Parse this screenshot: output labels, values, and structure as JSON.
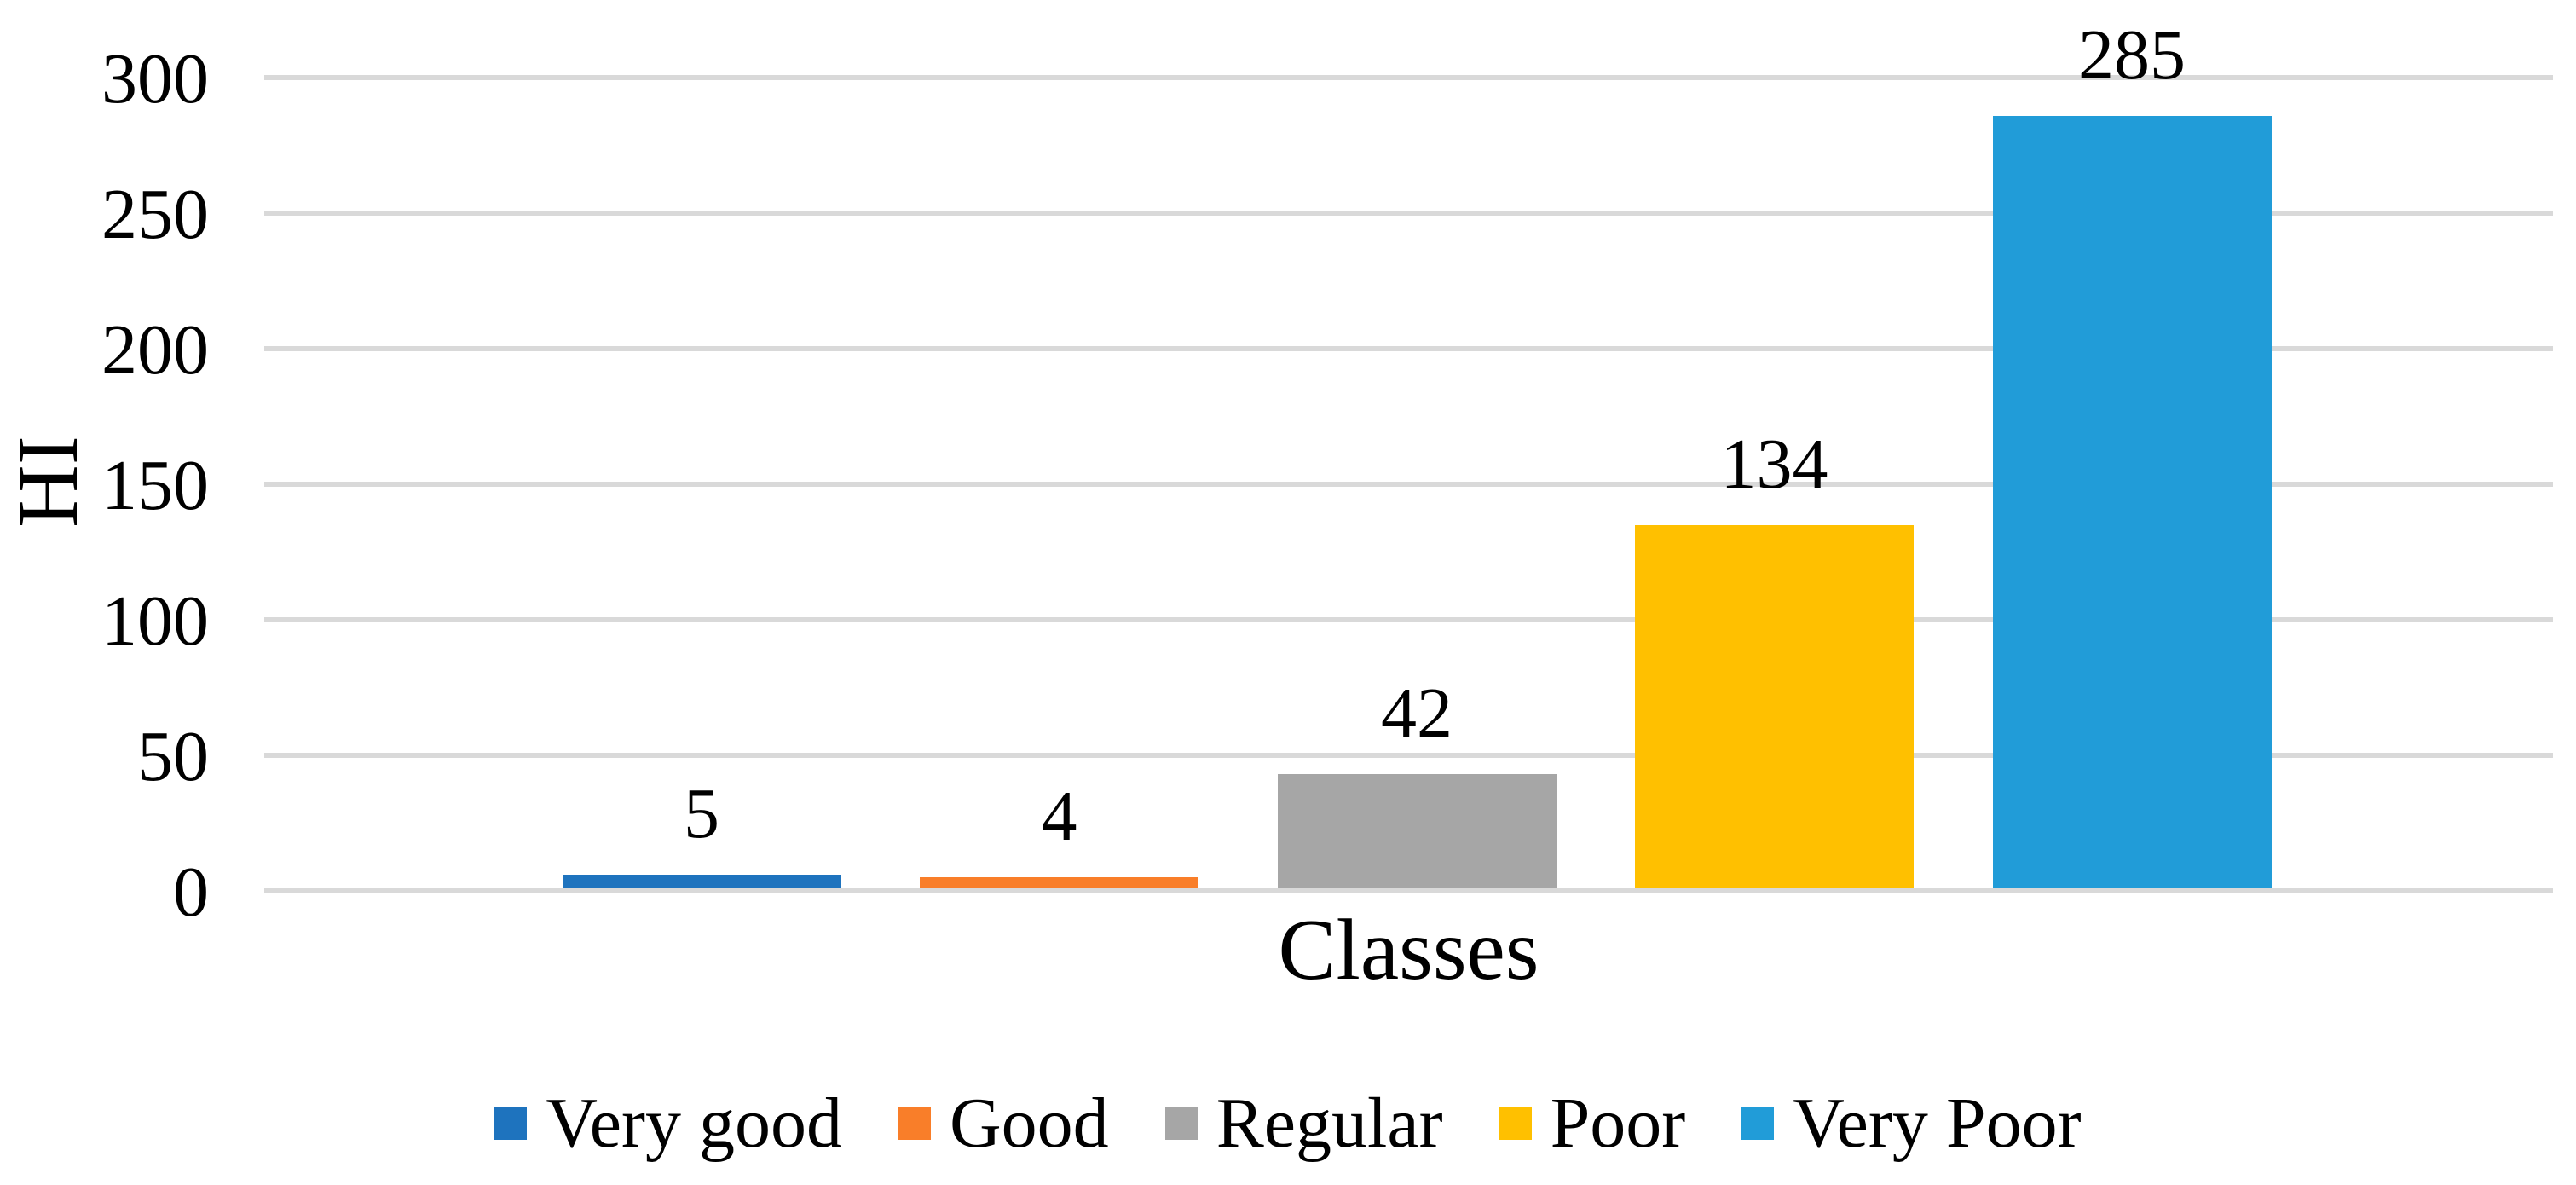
{
  "chart_data": {
    "type": "bar",
    "title": "",
    "xlabel": "Classes",
    "ylabel": "HI",
    "categories": [
      "Very good",
      "Good",
      "Regular",
      "Poor",
      "Very Poor"
    ],
    "values": [
      5,
      4,
      42,
      134,
      285
    ],
    "data_labels": [
      "5",
      "4",
      "42",
      "134",
      "285"
    ],
    "colors": [
      "#1E73BE",
      "#F97E29",
      "#A6A6A6",
      "#FFC000",
      "#219CD8"
    ],
    "ylim": [
      0,
      300
    ],
    "ytick_step": 50,
    "yticks": [
      0,
      50,
      100,
      150,
      200,
      250,
      300
    ],
    "grid": true,
    "gridline_color": "#D9D9D9",
    "text_color": "#000000",
    "background_color": "#FFFFFF",
    "legend_position": "bottom",
    "legend": [
      "Very good",
      "Good",
      "Regular",
      "Poor",
      "Very Poor"
    ]
  }
}
